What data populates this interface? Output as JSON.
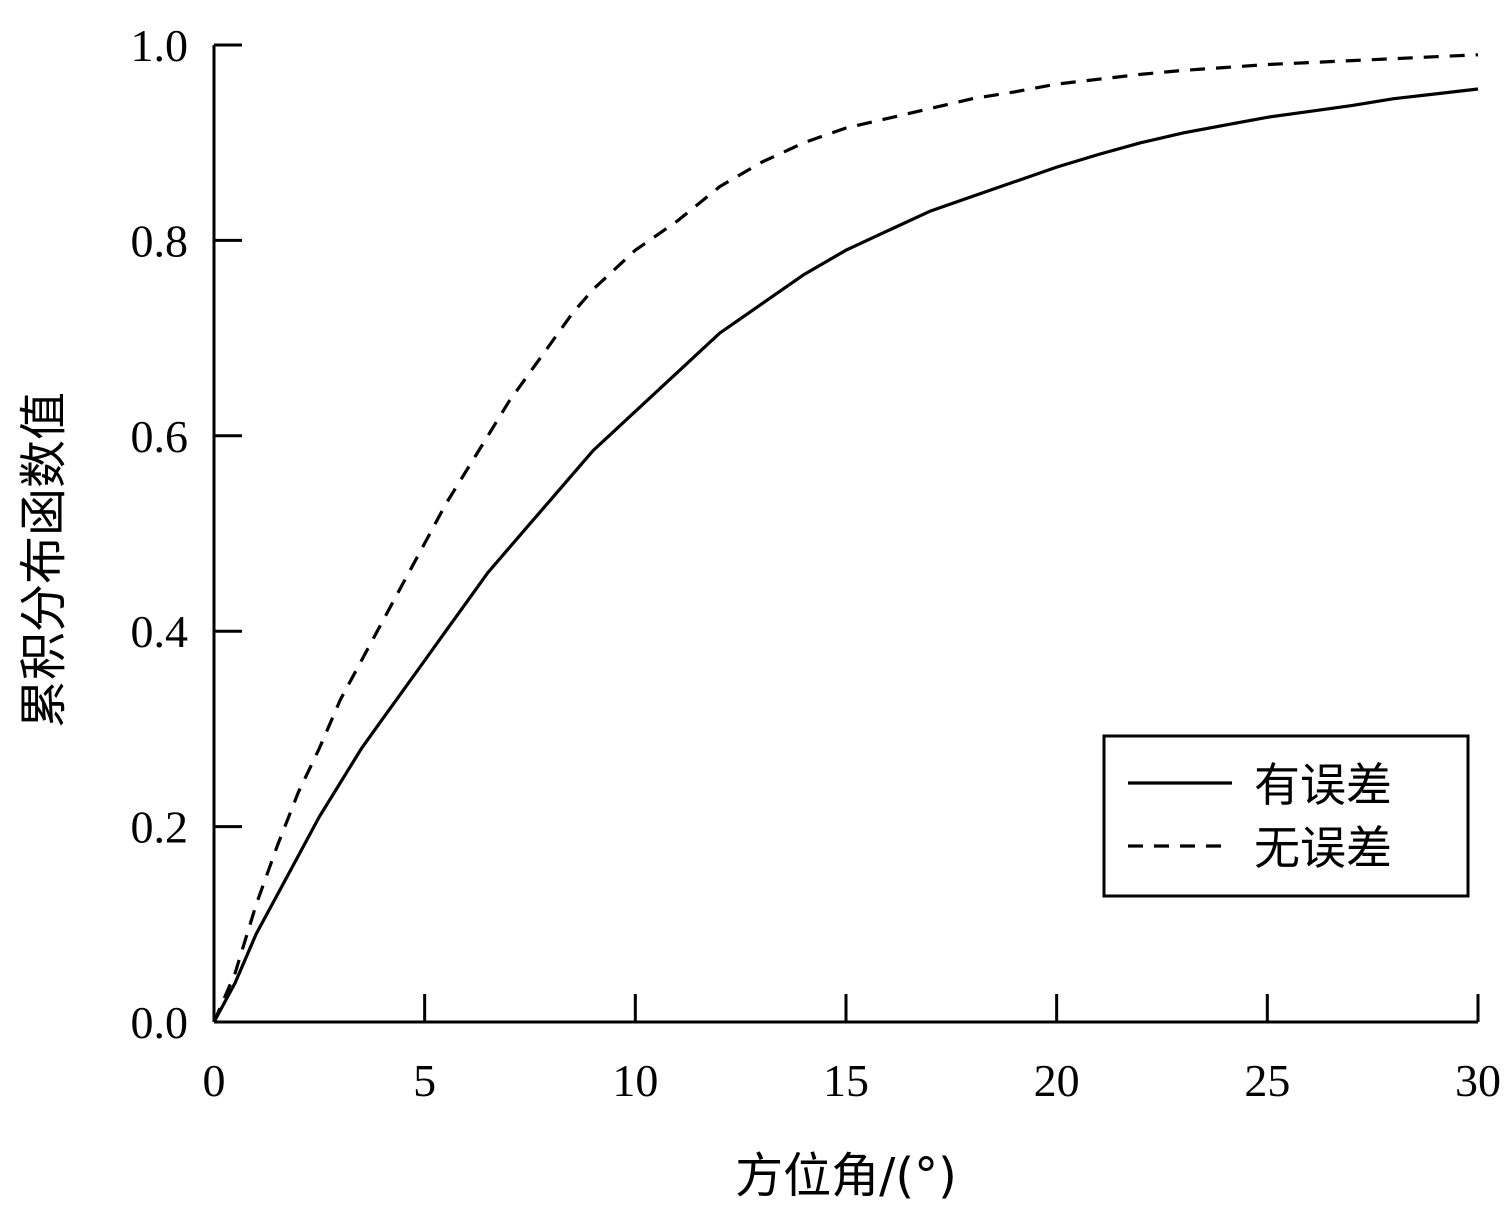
{
  "chart_data": {
    "type": "line",
    "xlabel": "方位角/(°)",
    "ylabel": "累积分布函数值",
    "xlim": [
      0,
      30
    ],
    "ylim": [
      0,
      1
    ],
    "xticks": [
      0,
      5,
      10,
      15,
      20,
      25,
      30
    ],
    "xtick_labels": [
      "0",
      "5",
      "10",
      "15",
      "20",
      "25",
      "30"
    ],
    "yticks": [
      0,
      0.2,
      0.4,
      0.6,
      0.8,
      1.0
    ],
    "ytick_labels": [
      "0.0",
      "0.2",
      "0.4",
      "0.6",
      "0.8",
      "1.0"
    ],
    "grid": false,
    "legend_position": "lower-right",
    "series": [
      {
        "name": "有误差",
        "style": "solid",
        "color": "#000000",
        "x": [
          0,
          0.5,
          1,
          1.5,
          2,
          2.5,
          3,
          3.5,
          4,
          4.5,
          5,
          5.5,
          6,
          6.5,
          7,
          7.5,
          8,
          8.5,
          9,
          9.5,
          10,
          11,
          12,
          13,
          14,
          15,
          16,
          17,
          18,
          19,
          20,
          21,
          22,
          23,
          24,
          25,
          26,
          27,
          28,
          29,
          30
        ],
        "values": [
          0,
          0.04,
          0.09,
          0.13,
          0.17,
          0.21,
          0.245,
          0.28,
          0.31,
          0.34,
          0.37,
          0.4,
          0.43,
          0.46,
          0.485,
          0.51,
          0.535,
          0.56,
          0.585,
          0.605,
          0.625,
          0.665,
          0.705,
          0.735,
          0.765,
          0.79,
          0.81,
          0.83,
          0.845,
          0.86,
          0.875,
          0.888,
          0.9,
          0.91,
          0.918,
          0.926,
          0.932,
          0.938,
          0.945,
          0.95,
          0.955
        ]
      },
      {
        "name": "无误差",
        "style": "dashed",
        "color": "#000000",
        "x": [
          0,
          0.5,
          1,
          1.5,
          2,
          2.5,
          3,
          3.5,
          4,
          4.5,
          5,
          5.5,
          6,
          6.5,
          7,
          7.5,
          8,
          8.5,
          9,
          9.5,
          10,
          11,
          12,
          13,
          14,
          15,
          16,
          17,
          18,
          19,
          20,
          21,
          22,
          23,
          24,
          25,
          26,
          27,
          28,
          29,
          30
        ],
        "values": [
          0,
          0.05,
          0.12,
          0.18,
          0.235,
          0.28,
          0.33,
          0.37,
          0.41,
          0.45,
          0.49,
          0.53,
          0.565,
          0.6,
          0.635,
          0.665,
          0.695,
          0.725,
          0.75,
          0.77,
          0.79,
          0.82,
          0.855,
          0.88,
          0.9,
          0.915,
          0.925,
          0.935,
          0.945,
          0.952,
          0.96,
          0.965,
          0.97,
          0.974,
          0.977,
          0.98,
          0.982,
          0.984,
          0.986,
          0.988,
          0.99
        ]
      }
    ]
  }
}
